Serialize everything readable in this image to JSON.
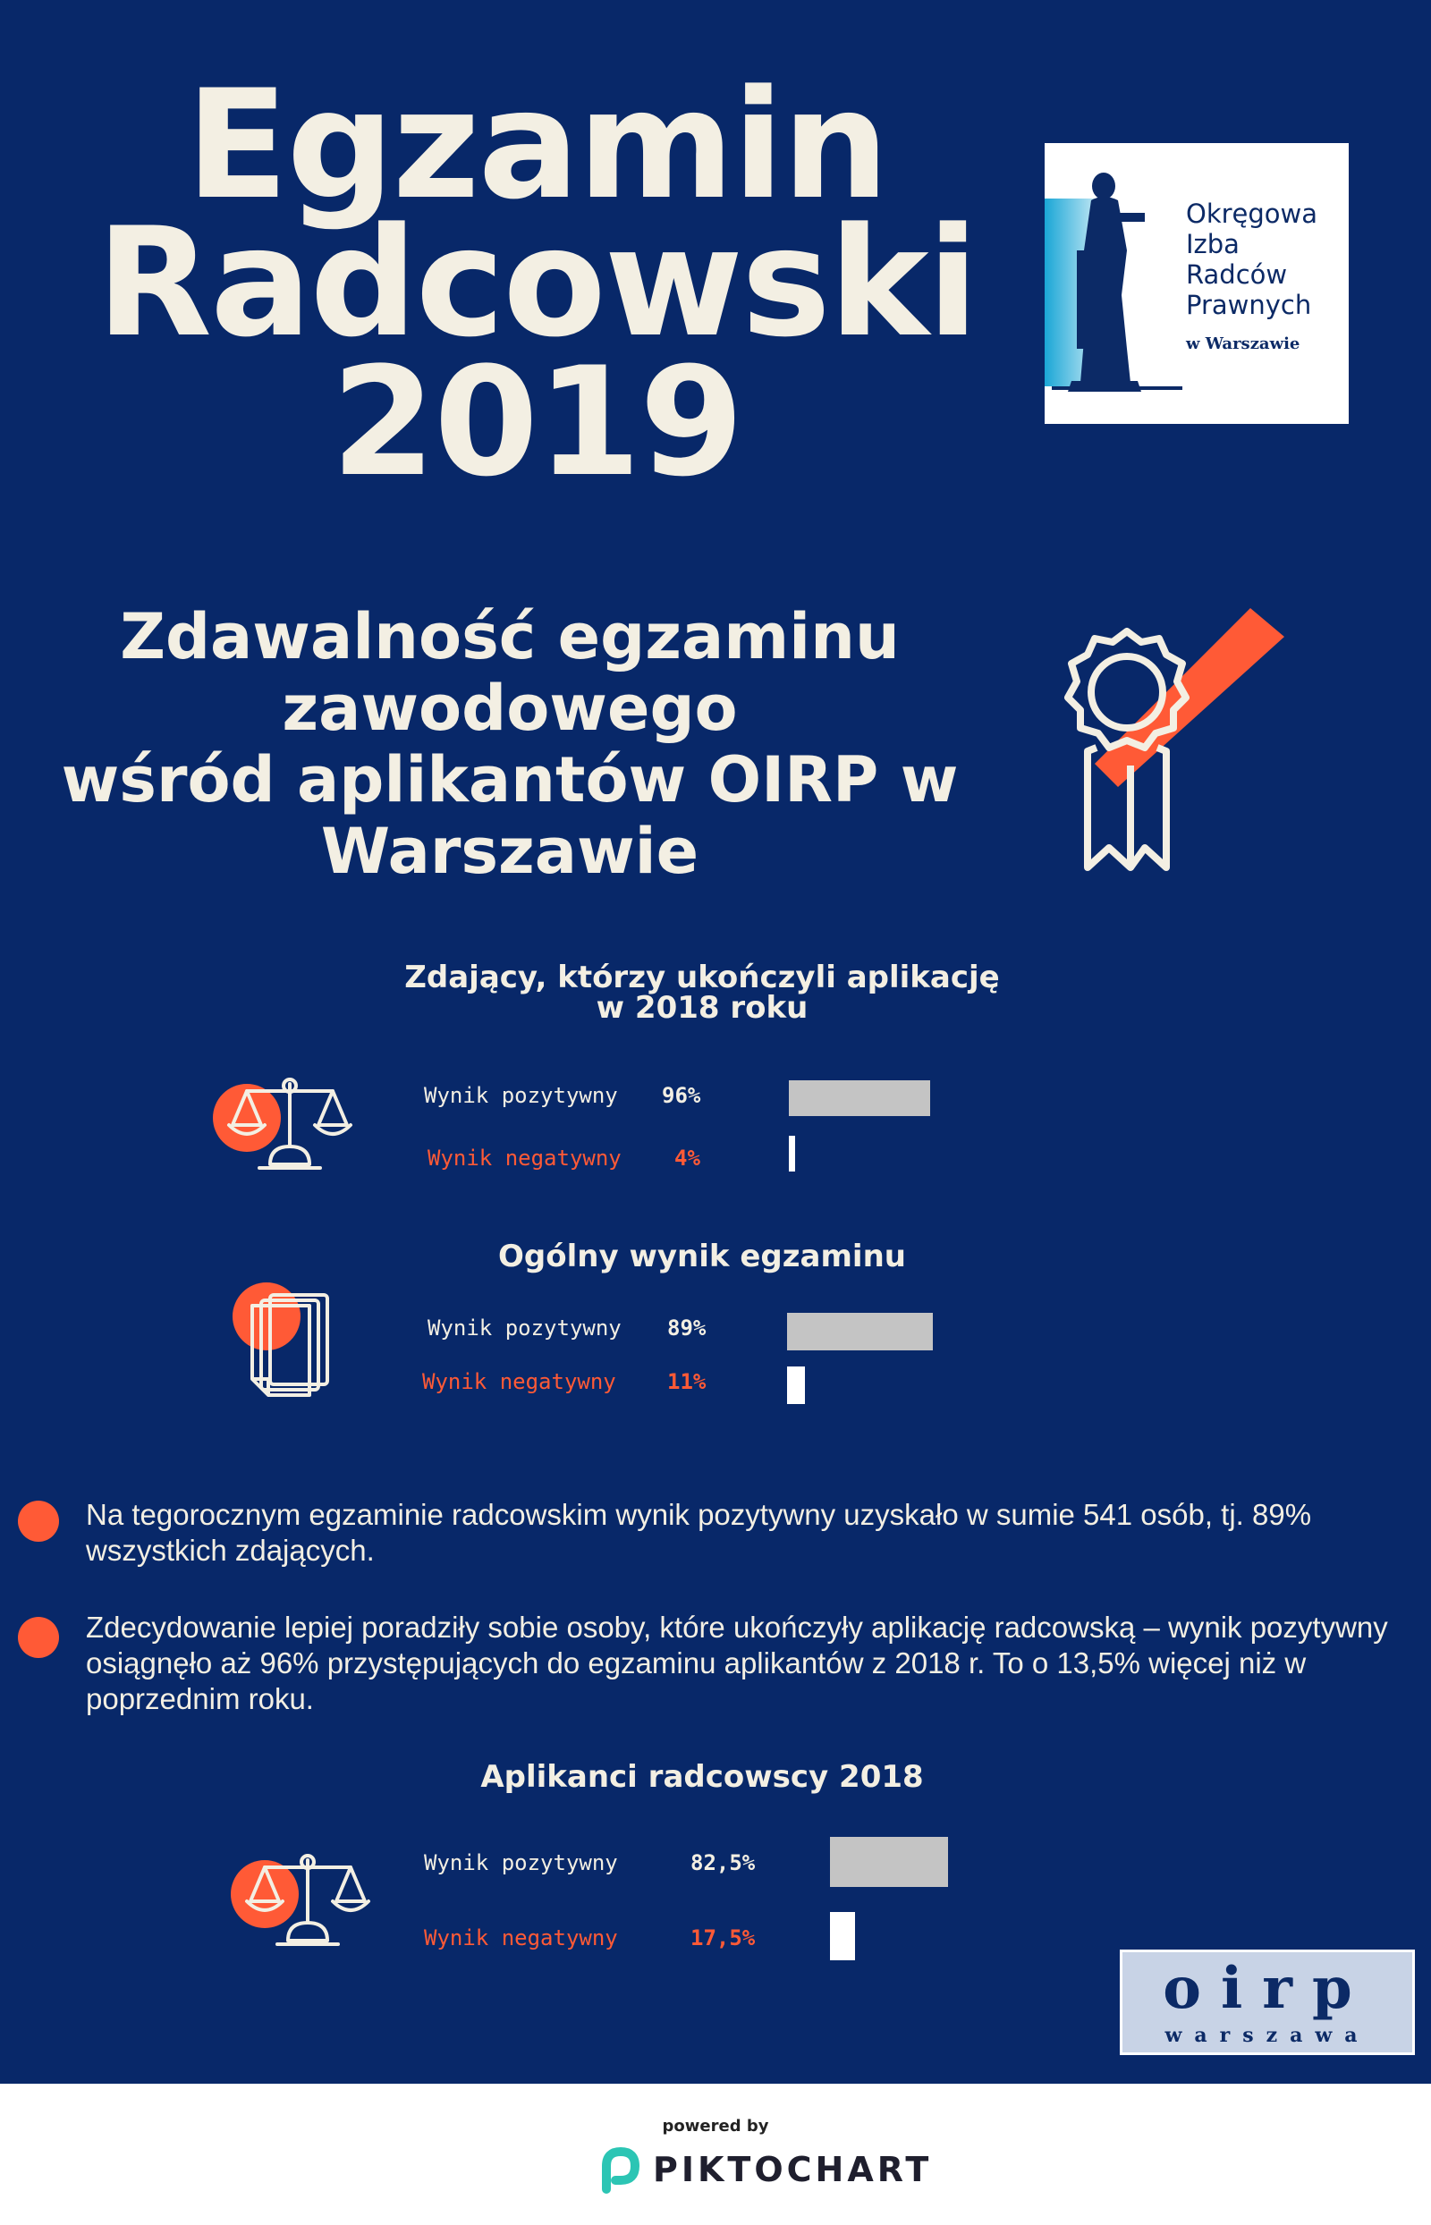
{
  "header": {
    "title_lines": [
      "Egzamin",
      "Radcowski",
      "2019"
    ],
    "subtitle_lines": [
      "Zdawalność egzaminu",
      "zawodowego",
      "wśród aplikantów OIRP w",
      "Warszawie"
    ]
  },
  "logo": {
    "lines": [
      "Okręgowa",
      "Izba",
      "Radców",
      "Prawnych"
    ],
    "small": "w Warszawie"
  },
  "chart_data": [
    {
      "type": "bar",
      "title": "Zdający, którzy ukończyli aplikację w 2018 roku",
      "categories": [
        "Wynik pozytywny",
        "Wynik negatywny"
      ],
      "values": [
        96,
        4
      ],
      "value_labels": [
        "96%",
        "4%"
      ],
      "unit": "%"
    },
    {
      "type": "bar",
      "title": "Ogólny wynik egzaminu",
      "categories": [
        "Wynik pozytywny",
        "Wynik negatywny"
      ],
      "values": [
        89,
        11
      ],
      "value_labels": [
        "89%",
        "11%"
      ],
      "unit": "%"
    },
    {
      "type": "bar",
      "title": "Aplikanci radcowscy 2018",
      "categories": [
        "Wynik pozytywny",
        "Wynik negatywny"
      ],
      "values": [
        82.5,
        17.5
      ],
      "value_labels": [
        "82,5%",
        "17,5%"
      ],
      "unit": "%"
    }
  ],
  "section_titles": {
    "s1_line1": "Zdający, którzy ukończyli aplikację",
    "s1_line2": "w 2018 roku",
    "s2": "Ogólny wynik egzaminu",
    "s3": "Aplikanci radcowscy 2018"
  },
  "paragraphs": [
    "Na tegorocznym egzaminie radcowskim wynik pozytywny uzyskało w sumie 541 osób, tj. 89% wszystkich zdających.",
    "Zdecydowanie lepiej poradziły sobie osoby, które ukończyły aplikację radcowską – wynik pozytywny osiągnęło aż 96% przystępujących do egzaminu aplikantów z 2018 r. To o 13,5% więcej niż w poprzednim roku."
  ],
  "oirp_logo": {
    "big": "oirp",
    "small": "warszawa"
  },
  "footer": {
    "powered": "powered by",
    "brand": "PIKTOCHART"
  },
  "colors": {
    "background": "#082869",
    "accent": "#ff5a36",
    "text": "#f3efe3",
    "bar_positive": "#c4c4c4",
    "bar_negative": "#ffffff"
  }
}
